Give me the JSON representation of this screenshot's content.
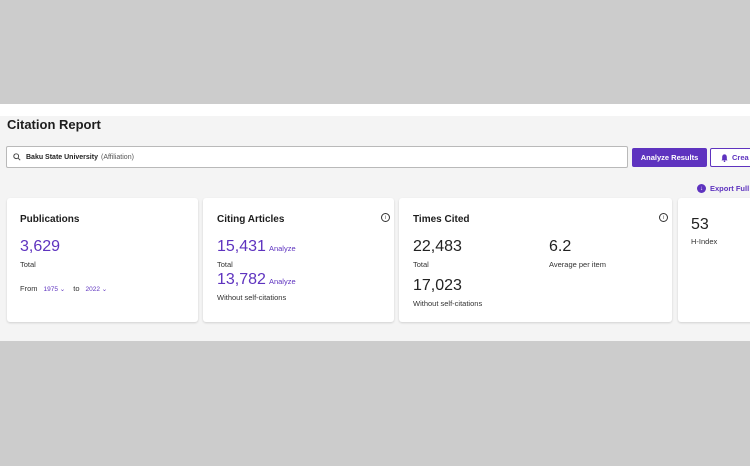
{
  "header": {
    "title": "Citation Report"
  },
  "search": {
    "query": "Baku State University",
    "hint": "(Affiliation)"
  },
  "buttons": {
    "analyze": "Analyze Results",
    "create": "Crea",
    "export": "Export Full"
  },
  "publications": {
    "title": "Publications",
    "value": "3,629",
    "label": "Total",
    "from_label": "From",
    "from_value": "1975",
    "to_label": "to",
    "to_value": "2022"
  },
  "citing": {
    "title": "Citing Articles",
    "total": "15,431",
    "total_label": "Total",
    "without": "13,782",
    "without_label": "Without self-citations",
    "analyze": "Analyze"
  },
  "times_cited": {
    "title": "Times Cited",
    "total": "22,483",
    "total_label": "Total",
    "average": "6.2",
    "average_label": "Average per item",
    "without": "17,023",
    "without_label": "Without self-citations"
  },
  "hindex": {
    "value": "53",
    "label": "H-Index"
  },
  "colors": {
    "accent": "#5e33bf"
  },
  "icons": [
    "search-icon",
    "bell-icon",
    "download-icon",
    "info-icon",
    "chevron-down-icon"
  ]
}
